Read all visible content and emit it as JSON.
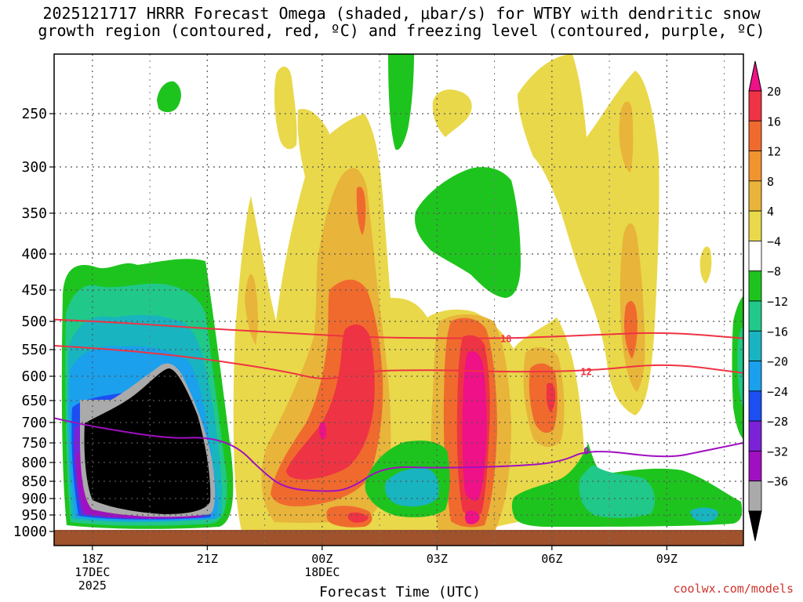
{
  "title": {
    "line1": "2025121717 HRRR Forecast Omega (shaded, μbar/s) for WTBY with dendritic snow",
    "line2": "growth region (contoured, red, ºC) and freezing level (contoured, purple, ºC)"
  },
  "footer": "coolwx.com/models",
  "chart_data": {
    "type": "heatmap",
    "xlabel": "Forecast Time (UTC)",
    "ylabel": "",
    "x_ticks": [
      {
        "hour": 18,
        "label": "18Z",
        "sub1": "17DEC",
        "sub2": "2025"
      },
      {
        "hour": 21,
        "label": "21Z",
        "sub1": "",
        "sub2": ""
      },
      {
        "hour": 24,
        "label": "00Z",
        "sub1": "18DEC",
        "sub2": ""
      },
      {
        "hour": 27,
        "label": "03Z",
        "sub1": "",
        "sub2": ""
      },
      {
        "hour": 30,
        "label": "06Z",
        "sub1": "",
        "sub2": ""
      },
      {
        "hour": 33,
        "label": "09Z",
        "sub1": "",
        "sub2": ""
      }
    ],
    "x_range_hours": [
      17,
      35
    ],
    "y_ticks": [
      250,
      300,
      350,
      400,
      450,
      500,
      550,
      600,
      650,
      700,
      750,
      800,
      850,
      900,
      950,
      1000
    ],
    "y_range_mb": [
      200,
      1020
    ],
    "colorbar": {
      "labels": [
        "20",
        "16",
        "12",
        "8",
        "4",
        "−4",
        "−8",
        "−12",
        "−16",
        "−20",
        "−24",
        "−28",
        "−32",
        "−36"
      ],
      "colors": [
        "#ee1188",
        "#ee3344",
        "#f06a2e",
        "#f09430",
        "#e8b43a",
        "#e9d84a",
        "#ffffff",
        "#1ec41e",
        "#20c88a",
        "#18b4c0",
        "#1aa0ec",
        "#1c4ef2",
        "#7a22d8",
        "#a010c0",
        "#aaaaaa",
        "#000000"
      ]
    },
    "contours": [
      {
        "value": "18",
        "color": "#ee3344",
        "hours": [
          17,
          19,
          21,
          23,
          25,
          27,
          29,
          31,
          33,
          35
        ],
        "mb": [
          497,
          503,
          513,
          520,
          528,
          530,
          530,
          524,
          519,
          530
        ]
      },
      {
        "value": "12",
        "color": "#ee3344",
        "hours": [
          17,
          19,
          21,
          23,
          24.1,
          25,
          27,
          29,
          31,
          33,
          35
        ],
        "mb": [
          543,
          552,
          568,
          590,
          610,
          590,
          588,
          592,
          590,
          575,
          594
        ]
      },
      {
        "value": "0",
        "color": "#a010c0",
        "hours": [
          17,
          18,
          20,
          21,
          21.8,
          22.4,
          23,
          24,
          24.7,
          25.6,
          27,
          29,
          30.2,
          31,
          33,
          34,
          35
        ],
        "mb": [
          690,
          710,
          740,
          735,
          760,
          820,
          870,
          880,
          875,
          810,
          815,
          810,
          800,
          765,
          790,
          770,
          750
        ]
      }
    ],
    "ground_mb": 990,
    "omega_cells": [
      {
        "hours": [
          18.2,
          21.2
        ],
        "mb": [
          380,
          960
        ],
        "value": -20
      },
      {
        "hours": [
          18.6,
          20.8
        ],
        "mb": [
          560,
          940
        ],
        "value": -36
      },
      {
        "hours": [
          19.5,
          19.8
        ],
        "mb": [
          230,
          270
        ],
        "value": -4
      },
      {
        "hours": [
          22.0,
          27.0
        ],
        "mb": [
          240,
          990
        ],
        "value": 4
      },
      {
        "hours": [
          23.0,
          25.8
        ],
        "mb": [
          360,
          990
        ],
        "value": 12
      },
      {
        "hours": [
          23.6,
          25.2
        ],
        "mb": [
          500,
          820
        ],
        "value": 16
      },
      {
        "hours": [
          27.2,
          28.8
        ],
        "mb": [
          530,
          960
        ],
        "value": 20
      },
      {
        "hours": [
          26.8,
          29.8
        ],
        "mb": [
          300,
          480
        ],
        "value": -4
      },
      {
        "hours": [
          30.0,
          33.4
        ],
        "mb": [
          570,
          990
        ],
        "value": -4
      },
      {
        "hours": [
          31.2,
          32.8
        ],
        "mb": [
          720,
          920
        ],
        "value": -12
      },
      {
        "hours": [
          29.4,
          31.0
        ],
        "mb": [
          200,
          540
        ],
        "value": 4
      },
      {
        "hours": [
          31.6,
          32.2
        ],
        "mb": [
          250,
          670
        ],
        "value": 8
      }
    ]
  }
}
